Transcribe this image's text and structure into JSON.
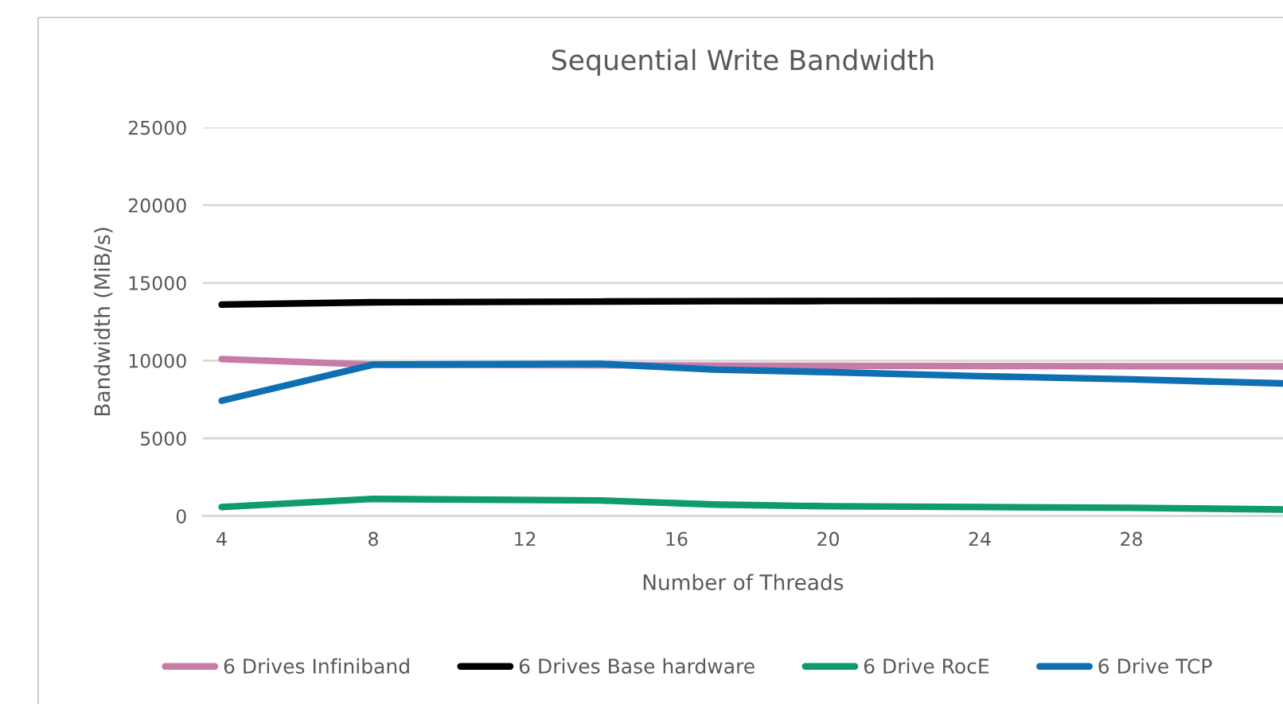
{
  "chart_data": {
    "type": "line",
    "title": "Sequential Write Bandwidth",
    "xlabel": "Number of Threads",
    "ylabel": "Bandwidth (MiB/s)",
    "x": [
      4,
      8,
      14,
      17,
      20,
      24,
      28,
      32
    ],
    "series": [
      {
        "name": "6 Drives Infiniband",
        "color": "#c97ba8",
        "values": [
          10100,
          9740,
          9700,
          9680,
          9660,
          9650,
          9640,
          9630
        ]
      },
      {
        "name": "6 Drives Base hardware",
        "color": "#000000",
        "values": [
          13600,
          13750,
          13800,
          13820,
          13830,
          13840,
          13840,
          13850
        ]
      },
      {
        "name": "6 Drive RocE",
        "color": "#0f9b6e",
        "values": [
          580,
          1100,
          1000,
          740,
          630,
          580,
          530,
          420
        ]
      },
      {
        "name": "6 Drive TCP",
        "color": "#0f6fb3",
        "values": [
          7420,
          9740,
          9790,
          9420,
          9260,
          9000,
          8790,
          8530
        ]
      }
    ],
    "xlim": [
      3.5,
      32
    ],
    "xticks": [
      4,
      8,
      12,
      16,
      20,
      24,
      28
    ],
    "ylim": [
      0,
      25000
    ],
    "yticks": [
      0,
      5000,
      10000,
      15000,
      20000,
      25000
    ],
    "grid": "y",
    "legend": "bottom",
    "marker": "none",
    "line_style": "solid"
  }
}
